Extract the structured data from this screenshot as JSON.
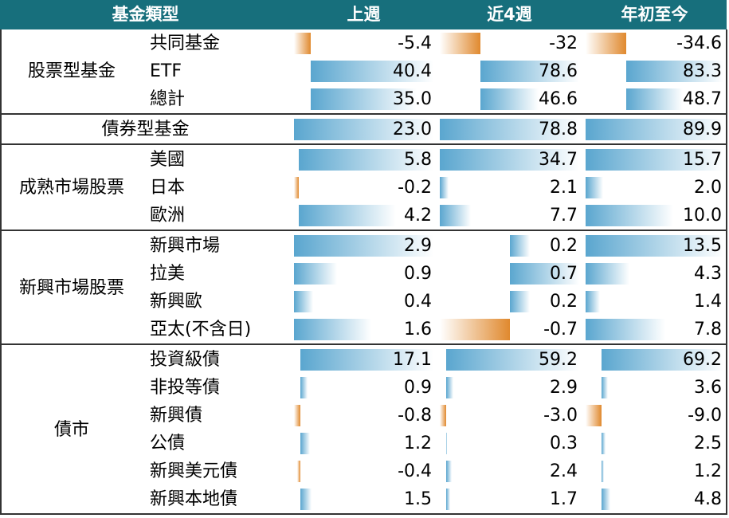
{
  "header": [
    "基金類型",
    "上週",
    "近4週",
    "年初至今"
  ],
  "groups": [
    {
      "name": "股票型基金",
      "rows": [
        {
          "label": "共同基金",
          "values": [
            "-5.4",
            "-32",
            "-34.6"
          ]
        },
        {
          "label": "ETF",
          "values": [
            "40.4",
            "78.6",
            "83.3"
          ]
        },
        {
          "label": "總計",
          "values": [
            "35.0",
            "46.6",
            "48.7"
          ]
        }
      ]
    },
    {
      "name": "債券型基金",
      "values": [
        "23.0",
        "78.8",
        "89.9"
      ]
    },
    {
      "name": "成熟市場股票",
      "rows": [
        {
          "label": "美國",
          "values": [
            "5.8",
            "34.7",
            "15.7"
          ]
        },
        {
          "label": "日本",
          "values": [
            "-0.2",
            "2.1",
            "2.0"
          ]
        },
        {
          "label": "歐洲",
          "values": [
            "4.2",
            "7.7",
            "10.0"
          ]
        }
      ]
    },
    {
      "name": "新興市場股票",
      "rows": [
        {
          "label": "新興市場",
          "values": [
            "2.9",
            "0.2",
            "13.5"
          ]
        },
        {
          "label": "拉美",
          "values": [
            "0.9",
            "0.7",
            "4.3"
          ]
        },
        {
          "label": "新興歐",
          "values": [
            "0.4",
            "0.2",
            "1.4"
          ]
        },
        {
          "label": "亞太(不含日)",
          "values": [
            "1.6",
            "-0.7",
            "7.8"
          ]
        }
      ]
    },
    {
      "name": "債市",
      "rows": [
        {
          "label": "投資級債",
          "values": [
            "17.1",
            "59.2",
            "69.2"
          ]
        },
        {
          "label": "非投等債",
          "values": [
            "0.9",
            "2.9",
            "3.6"
          ]
        },
        {
          "label": "新興債",
          "values": [
            "-0.8",
            "-3.0",
            "-9.0"
          ]
        },
        {
          "label": "公債",
          "values": [
            "1.2",
            "0.3",
            "2.5"
          ]
        },
        {
          "label": "新興美元債",
          "values": [
            "-0.4",
            "2.4",
            "1.2"
          ]
        },
        {
          "label": "新興本地債",
          "values": [
            "1.5",
            "1.7",
            "4.8"
          ]
        }
      ]
    }
  ]
}
